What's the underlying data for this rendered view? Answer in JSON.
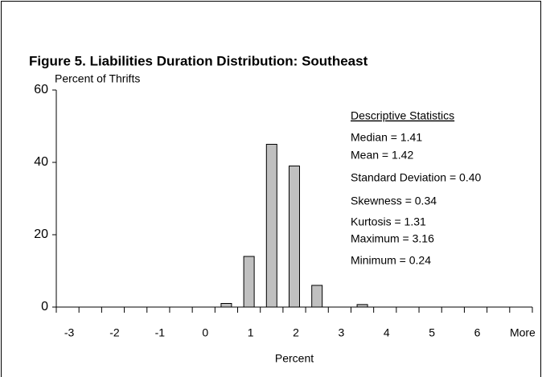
{
  "chart_data": {
    "type": "bar",
    "title": "Figure 5.  Liabilities Duration Distribution: Southeast",
    "y_label": "Percent of Thrifts",
    "x_label": "Percent",
    "categories": [
      "-3",
      null,
      "-2",
      null,
      "-1",
      null,
      "0",
      null,
      "1",
      null,
      "2",
      null,
      "3",
      null,
      "4",
      null,
      "5",
      null,
      "6",
      null,
      "More"
    ],
    "values": [
      0,
      0,
      0,
      0,
      0,
      0,
      0,
      1,
      14,
      45,
      39,
      6,
      0,
      0.7,
      0,
      0,
      0,
      0,
      0,
      0,
      0
    ],
    "color": "#c0c0c0",
    "ylim": [
      0,
      60
    ],
    "yticks": [
      0,
      20,
      40,
      60
    ],
    "grid": false,
    "annotations": {
      "heading": "Descriptive Statistics",
      "lines": [
        "Median  = 1.41",
        "Mean = 1.42",
        "Standard Deviation = 0.40",
        "Skewness = 0.34",
        "Kurtosis = 1.31",
        "Maximum = 3.16",
        "Minimum = 0.24"
      ]
    }
  }
}
